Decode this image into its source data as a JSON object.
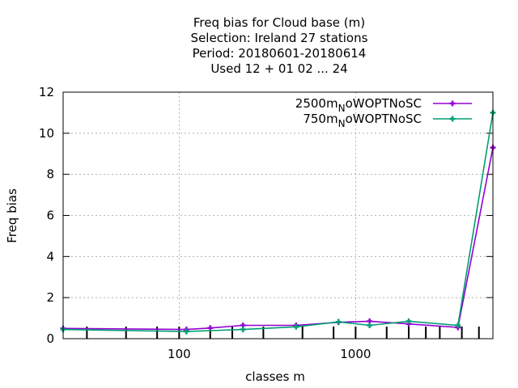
{
  "chart_data": {
    "type": "line",
    "title_lines": [
      "Freq bias  for Cloud base (m)",
      "Selection: Ireland     27 stations",
      "Period: 20180601-20180614",
      "Used  12 + 01 02 ... 24"
    ],
    "xlabel": "classes m",
    "ylabel": "Freq bias",
    "x_scale": "log",
    "xlim": [
      22,
      6000
    ],
    "ylim": [
      0,
      12
    ],
    "x_ticks": [
      100,
      1000
    ],
    "y_ticks": [
      0,
      2,
      4,
      6,
      8,
      10,
      12
    ],
    "grid": true,
    "legend_position": "top-right",
    "class_marks": [
      30,
      50,
      75,
      100,
      150,
      200,
      300,
      500,
      750,
      1000,
      1500,
      2000,
      2500,
      3000,
      4000,
      5000
    ],
    "series": [
      {
        "name_main": "2500m",
        "name_sub": "N",
        "name_tail": "oWOPTNoSC",
        "color": "#9400d3",
        "points": [
          [
            22,
            0.5
          ],
          [
            110,
            0.45
          ],
          [
            150,
            0.52
          ],
          [
            230,
            0.65
          ],
          [
            460,
            0.65
          ],
          [
            800,
            0.8
          ],
          [
            1200,
            0.85
          ],
          [
            2000,
            0.72
          ],
          [
            3800,
            0.55
          ],
          [
            6000,
            9.3
          ]
        ]
      },
      {
        "name_main": "750m",
        "name_sub": "N",
        "name_tail": "oWOPTNoSC",
        "color": "#009e73",
        "points": [
          [
            22,
            0.45
          ],
          [
            110,
            0.35
          ],
          [
            230,
            0.45
          ],
          [
            460,
            0.58
          ],
          [
            800,
            0.82
          ],
          [
            1200,
            0.65
          ],
          [
            2000,
            0.85
          ],
          [
            3800,
            0.65
          ],
          [
            6000,
            11.0
          ]
        ]
      }
    ]
  }
}
